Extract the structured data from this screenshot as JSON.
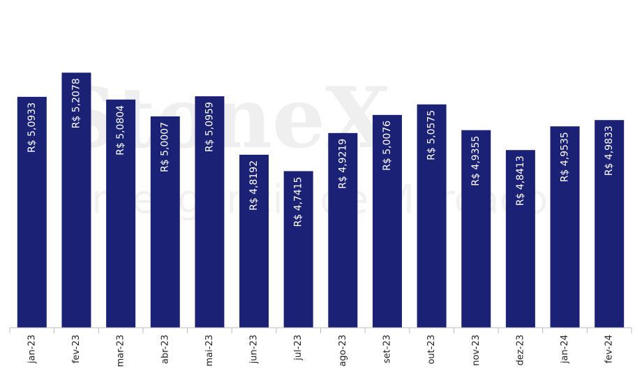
{
  "chart_data": {
    "type": "bar",
    "watermark": [
      "StoneX",
      "Inteligência de Mercado"
    ],
    "categories": [
      "jan-23",
      "fev-23",
      "mar-23",
      "abr-23",
      "mai-23",
      "jun-23",
      "jul-23",
      "ago-23",
      "set-23",
      "out-23",
      "nov-23",
      "dez-23",
      "jan-24",
      "fev-24"
    ],
    "values": [
      5.0933,
      5.2078,
      5.0804,
      5.0007,
      5.0959,
      4.8192,
      4.7415,
      4.9219,
      5.0076,
      5.0575,
      4.9355,
      4.8413,
      4.9535,
      4.9833
    ],
    "value_labels": [
      "R$ 5,0933",
      "R$ 5,2078",
      "R$ 5,0804",
      "R$ 5,0007",
      "R$ 5,0959",
      "R$ 4,8192",
      "R$ 4,7415",
      "R$ 4,9219",
      "R$ 5,0076",
      "R$ 5,0575",
      "R$ 4,9355",
      "R$ 4,8413",
      "R$ 4,9535",
      "R$ 4,9833"
    ],
    "color": "#1b2175",
    "ylim": [
      4,
      5.4
    ]
  }
}
